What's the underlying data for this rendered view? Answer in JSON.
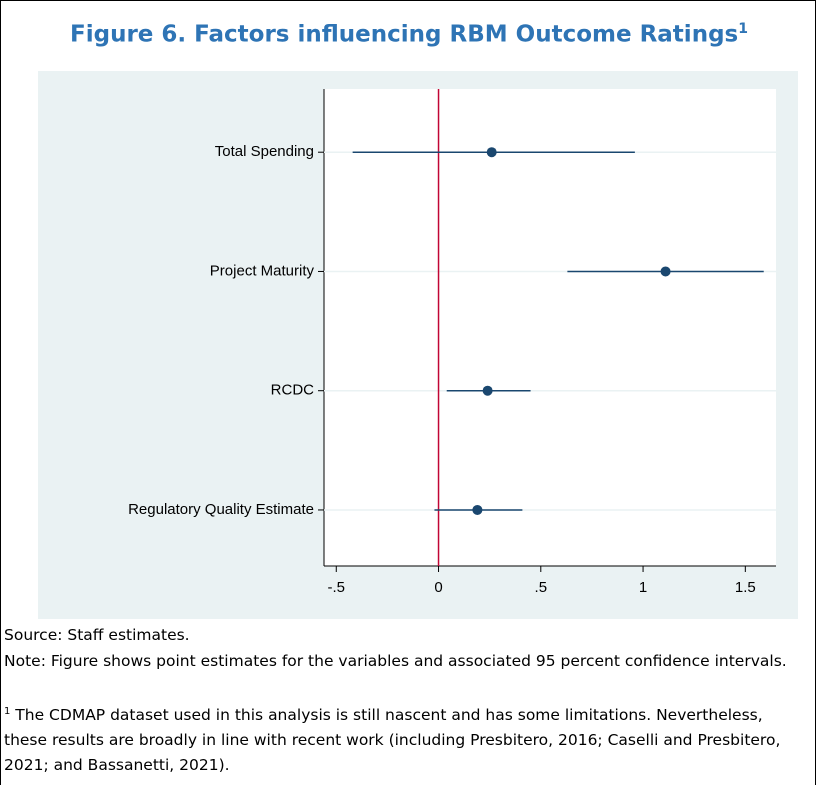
{
  "title": "Figure 6. Factors influencing RBM Outcome Ratings",
  "chart_data": {
    "type": "coefplot",
    "categories": [
      "Total Spending",
      "Project Maturity",
      "RCDC",
      "Regulatory Quality Estimate"
    ],
    "values": [
      0.26,
      1.11,
      0.24,
      0.19
    ],
    "ci_low": [
      -0.42,
      0.63,
      0.04,
      -0.02
    ],
    "ci_high": [
      0.96,
      1.59,
      0.45,
      0.41
    ],
    "color": "#1a476f",
    "xlim": [
      -0.56,
      1.65
    ],
    "xticks": [
      {
        "value": -0.5,
        "label": "-.5"
      },
      0,
      {
        "value": 0.5,
        "label": ".5"
      },
      1,
      1.5
    ],
    "xline": 0,
    "xline_color": "#c10534",
    "grid": true
  },
  "source": "Source: Staff estimates.",
  "note": "Note: Figure shows point estimates for the variables and associated 95 percent confidence intervals.",
  "footnote": {
    "mark": "1",
    "text": " The CDMAP dataset used in this analysis is still nascent and has some limitations. Nevertheless, these results are broadly in line with recent work (including Presbitero, 2016; Caselli and Presbitero, 2021; and Bassanetti, 2021)."
  }
}
